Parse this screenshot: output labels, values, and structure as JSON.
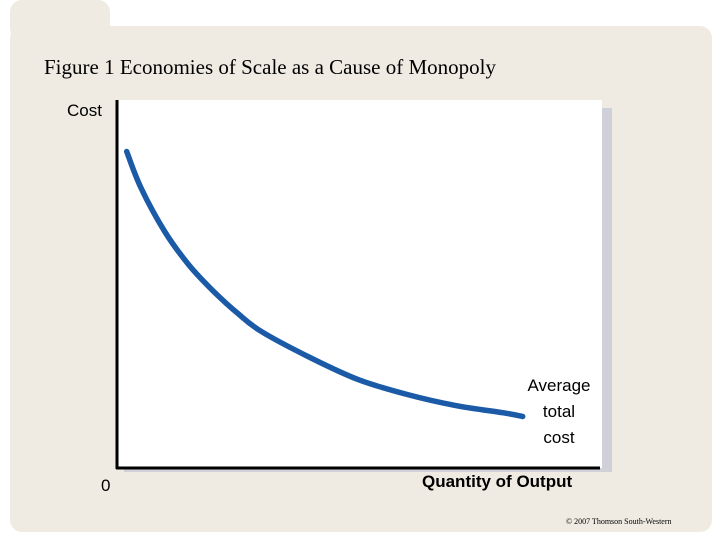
{
  "slide": {
    "title": "Figure 1 Economies of Scale as a Cause of Monopoly",
    "copyright": "© 2007 Thomson South-Western"
  },
  "colors": {
    "page_background": "#ffffff",
    "frame": "#efebe2",
    "plot_shadow": "#cfd0d8",
    "curve": "#1a5aa6",
    "axis": "#000000"
  },
  "chart_data": {
    "type": "line",
    "title": "Figure 1 Economies of Scale as a Cause of Monopoly",
    "xlabel": "Quantity of Output",
    "ylabel": "Cost",
    "origin_label": "0",
    "xlim": [
      0,
      100
    ],
    "ylim": [
      0,
      100
    ],
    "grid": false,
    "series": [
      {
        "name": "Average\ntotal\ncost",
        "x": [
          2,
          5,
          10,
          15,
          20,
          25,
          30,
          40,
          50,
          60,
          70,
          80,
          84
        ],
        "y": [
          86,
          76,
          64,
          55,
          48,
          42,
          37,
          30,
          24,
          20,
          17,
          15,
          14
        ]
      }
    ]
  }
}
